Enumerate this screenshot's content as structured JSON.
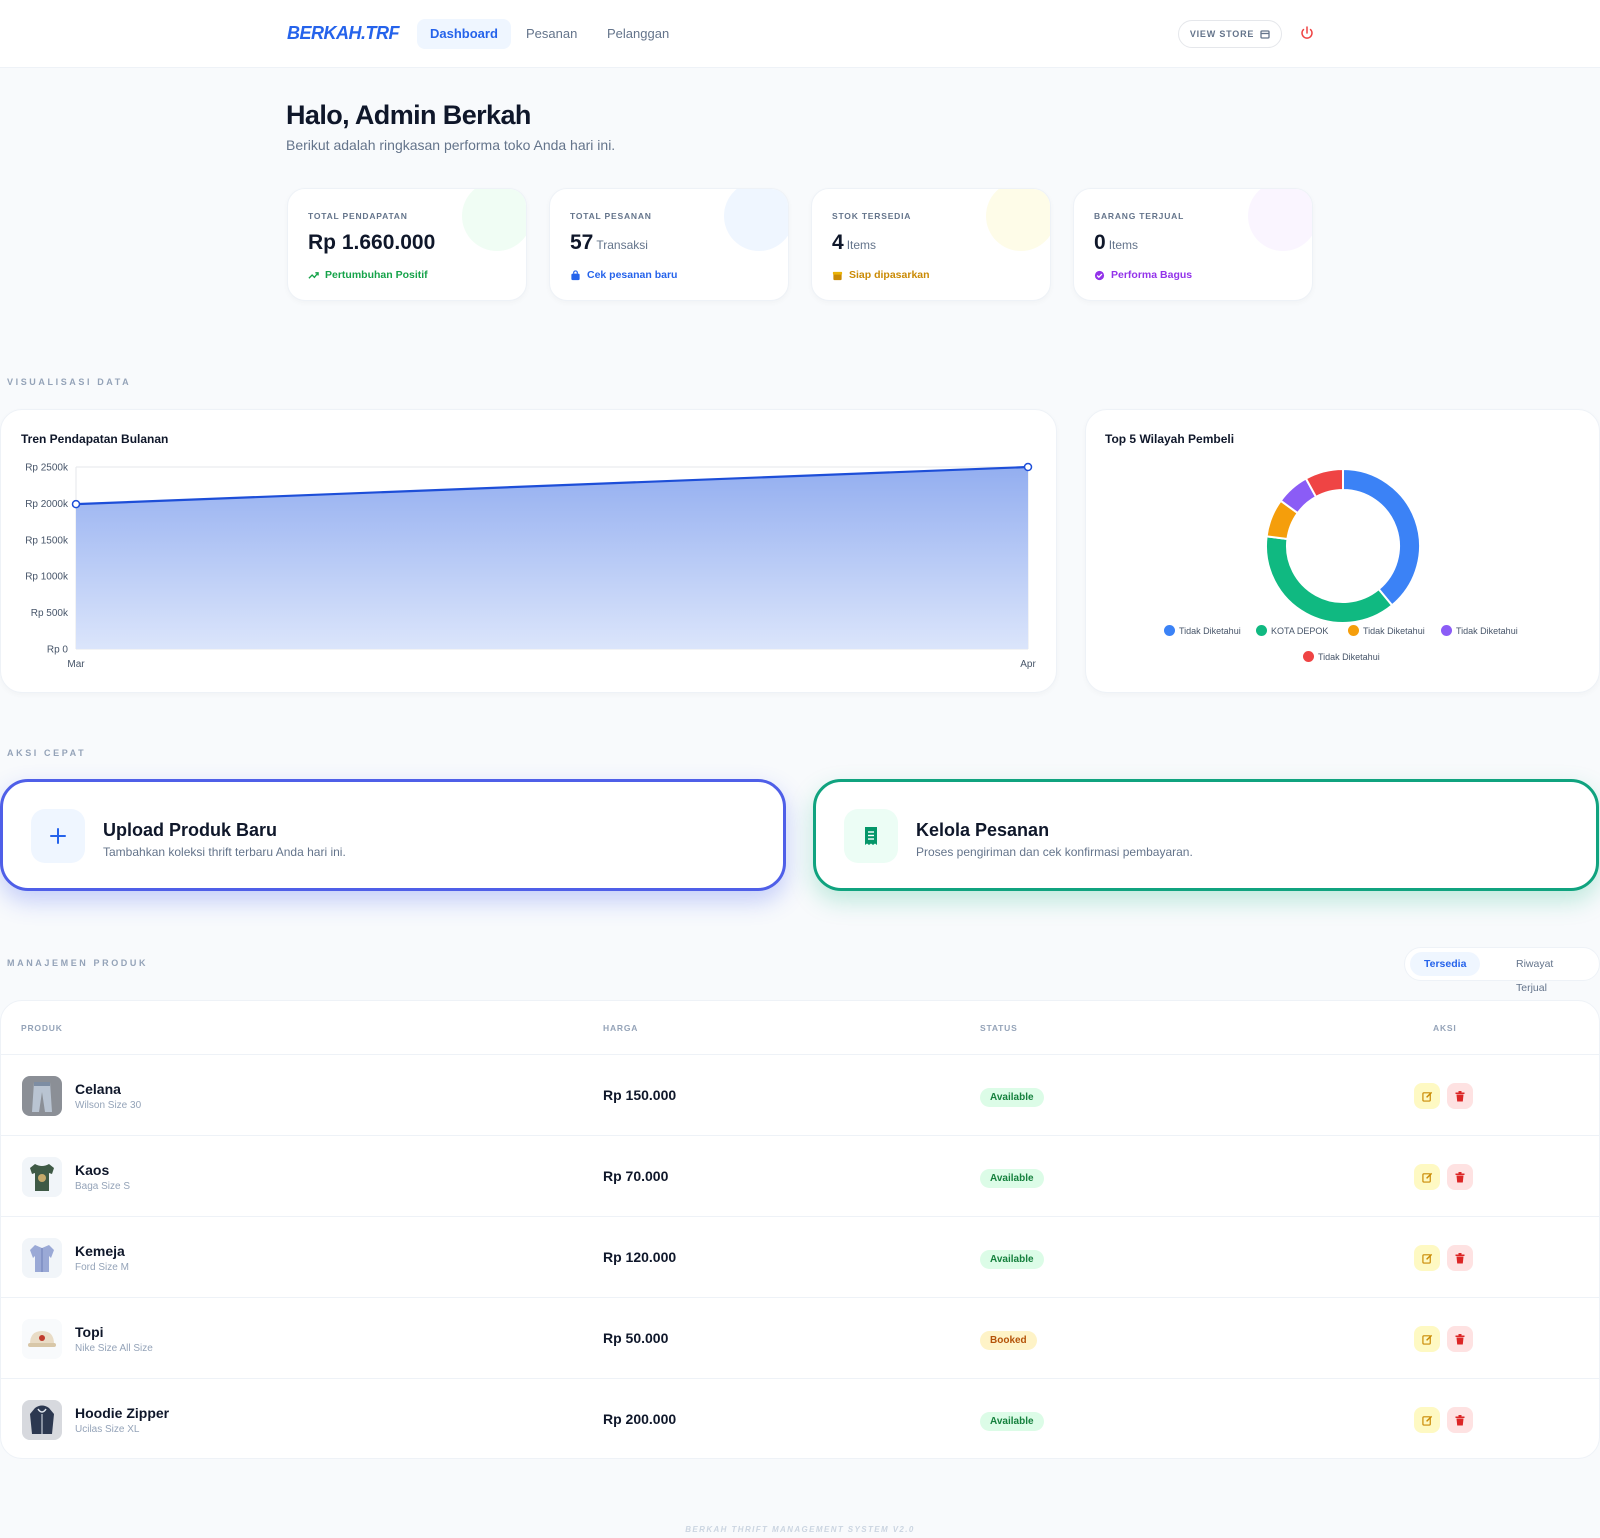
{
  "nav": {
    "brand": "BERKAH.TRF",
    "tabs": [
      {
        "label": "Dashboard",
        "active": true
      },
      {
        "label": "Pesanan",
        "active": false
      },
      {
        "label": "Pelanggan",
        "active": false
      }
    ],
    "view_store": "VIEW STORE"
  },
  "greeting": {
    "title": "Halo, Admin Berkah",
    "subtitle": "Berikut adalah ringkasan performa toko Anda hari ini."
  },
  "stats": [
    {
      "label": "TOTAL PENDAPATAN",
      "value": "Rp 1.660.000",
      "unit": "",
      "footer": "Pertumbuhan Positif",
      "color": "#16a34a",
      "blob": "#f0fdf4",
      "icon": "trend-up-icon"
    },
    {
      "label": "TOTAL PESANAN",
      "value": "57",
      "unit": "Transaksi",
      "footer": "Cek pesanan baru",
      "color": "#2563eb",
      "blob": "#eff6ff",
      "icon": "bag-icon"
    },
    {
      "label": "STOK TERSEDIA",
      "value": "4",
      "unit": "Items",
      "footer": "Siap dipasarkan",
      "color": "#ca8a04",
      "blob": "#fefce8",
      "icon": "box-icon"
    },
    {
      "label": "BARANG TERJUAL",
      "value": "0",
      "unit": "Items",
      "footer": "Performa Bagus",
      "color": "#9333ea",
      "blob": "#faf5ff",
      "icon": "check-circle-icon"
    }
  ],
  "sections": {
    "viz": "VISUALISASI DATA",
    "quick": "AKSI CEPAT",
    "products": "MANAJEMEN PRODUK"
  },
  "chart_data": [
    {
      "type": "area",
      "title": "Tren Pendapatan Bulanan",
      "x": [
        "Mar",
        "Apr"
      ],
      "values": [
        1990,
        2500
      ],
      "ylim": [
        0,
        2500
      ],
      "yticks": [
        "Rp 2500k",
        "Rp 2000k",
        "Rp 1500k",
        "Rp 1000k",
        "Rp 500k",
        "Rp 0"
      ],
      "grid": true,
      "colors": {
        "line": "#1d4ed8",
        "fill_top": "#93aef0",
        "fill_bottom": "#dbe5fb"
      }
    },
    {
      "type": "pie",
      "title": "Top 5 Wilayah Pembeli",
      "legend_position": "bottom",
      "slices": [
        {
          "label": "Tidak Diketahui",
          "value": 39,
          "color": "#3b82f6"
        },
        {
          "label": "KOTA DEPOK",
          "value": 38,
          "color": "#10b981"
        },
        {
          "label": "Tidak Diketahui",
          "value": 8,
          "color": "#f59e0b"
        },
        {
          "label": "Tidak Diketahui",
          "value": 7,
          "color": "#8b5cf6"
        },
        {
          "label": "Tidak Diketahui",
          "value": 8,
          "color": "#ef4444"
        }
      ]
    }
  ],
  "actions": [
    {
      "title": "Upload Produk Baru",
      "desc": "Tambahkan koleksi thrift terbaru Anda hari ini.",
      "icon": "plus-icon"
    },
    {
      "title": "Kelola Pesanan",
      "desc": "Proses pengiriman dan cek konfirmasi pembayaran.",
      "icon": "receipt-icon"
    }
  ],
  "product_tabs": [
    {
      "label": "Tersedia",
      "active": true
    },
    {
      "label": "Riwayat Terjual",
      "active": false
    }
  ],
  "table": {
    "headers": [
      "PRODUK",
      "HARGA",
      "STATUS",
      "AKSI"
    ],
    "rows": [
      {
        "name": "Celana",
        "desc": "Wilson Size 30",
        "price": "Rp 150.000",
        "status": "Available",
        "thumb": "pants-thumbnail"
      },
      {
        "name": "Kaos",
        "desc": "Baga Size S",
        "price": "Rp 70.000",
        "status": "Available",
        "thumb": "tshirt-thumbnail"
      },
      {
        "name": "Kemeja",
        "desc": "Ford Size M",
        "price": "Rp 120.000",
        "status": "Available",
        "thumb": "shirt-thumbnail"
      },
      {
        "name": "Topi",
        "desc": "Nike Size All Size",
        "price": "Rp 50.000",
        "status": "Booked",
        "thumb": "cap-thumbnail"
      },
      {
        "name": "Hoodie Zipper",
        "desc": "Ucilas Size XL",
        "price": "Rp 200.000",
        "status": "Available",
        "thumb": "hoodie-thumbnail"
      }
    ]
  },
  "footer": "BERKAH THRIFT MANAGEMENT SYSTEM V2.0"
}
